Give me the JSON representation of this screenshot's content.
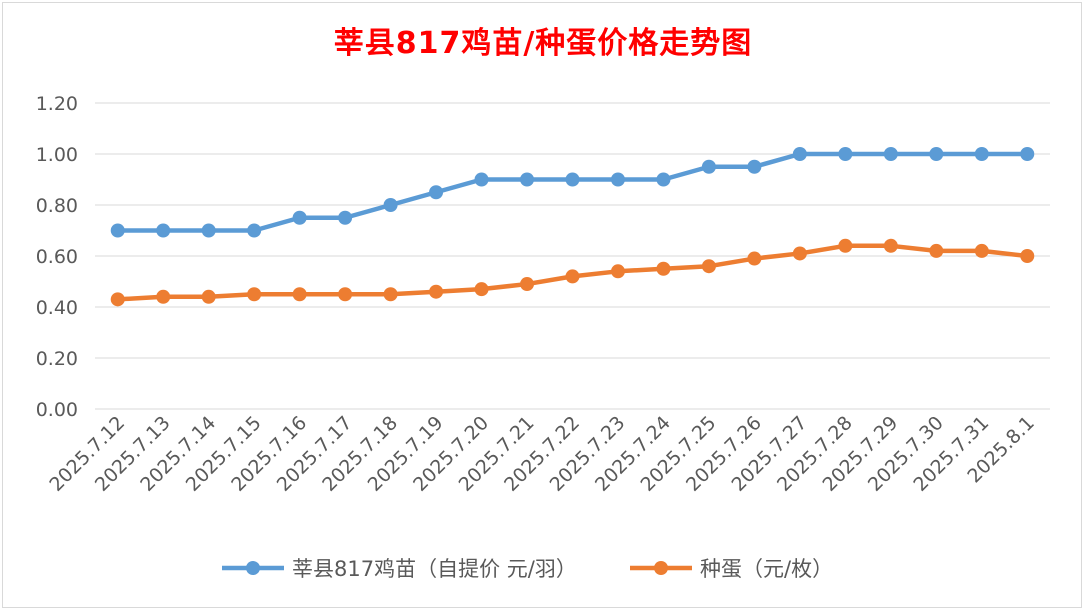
{
  "title": "莘县817鸡苗/种蛋价格走势图",
  "chart_data": {
    "type": "line",
    "title": "莘县817鸡苗/种蛋价格走势图",
    "categories": [
      "2025.7.12",
      "2025.7.13",
      "2025.7.14",
      "2025.7.15",
      "2025.7.16",
      "2025.7.17",
      "2025.7.18",
      "2025.7.19",
      "2025.7.20",
      "2025.7.21",
      "2025.7.22",
      "2025.7.23",
      "2025.7.24",
      "2025.7.25",
      "2025.7.26",
      "2025.7.27",
      "2025.7.28",
      "2025.7.29",
      "2025.7.30",
      "2025.7.31",
      "2025.8.1"
    ],
    "series": [
      {
        "name": "莘县817鸡苗（自提价 元/羽）",
        "color": "#5b9bd5",
        "values": [
          0.7,
          0.7,
          0.7,
          0.7,
          0.75,
          0.75,
          0.8,
          0.85,
          0.9,
          0.9,
          0.9,
          0.9,
          0.9,
          0.95,
          0.95,
          1.0,
          1.0,
          1.0,
          1.0,
          1.0,
          1.0
        ]
      },
      {
        "name": "种蛋（元/枚）",
        "color": "#ed7d31",
        "values": [
          0.43,
          0.44,
          0.44,
          0.45,
          0.45,
          0.45,
          0.45,
          0.46,
          0.47,
          0.49,
          0.52,
          0.54,
          0.55,
          0.56,
          0.59,
          0.61,
          0.64,
          0.64,
          0.62,
          0.62,
          0.6
        ]
      }
    ],
    "yticks": [
      "0.00",
      "0.20",
      "0.40",
      "0.60",
      "0.80",
      "1.00",
      "1.20"
    ],
    "ylim": [
      0,
      1.2
    ],
    "grid": true,
    "legend": "bottom"
  }
}
